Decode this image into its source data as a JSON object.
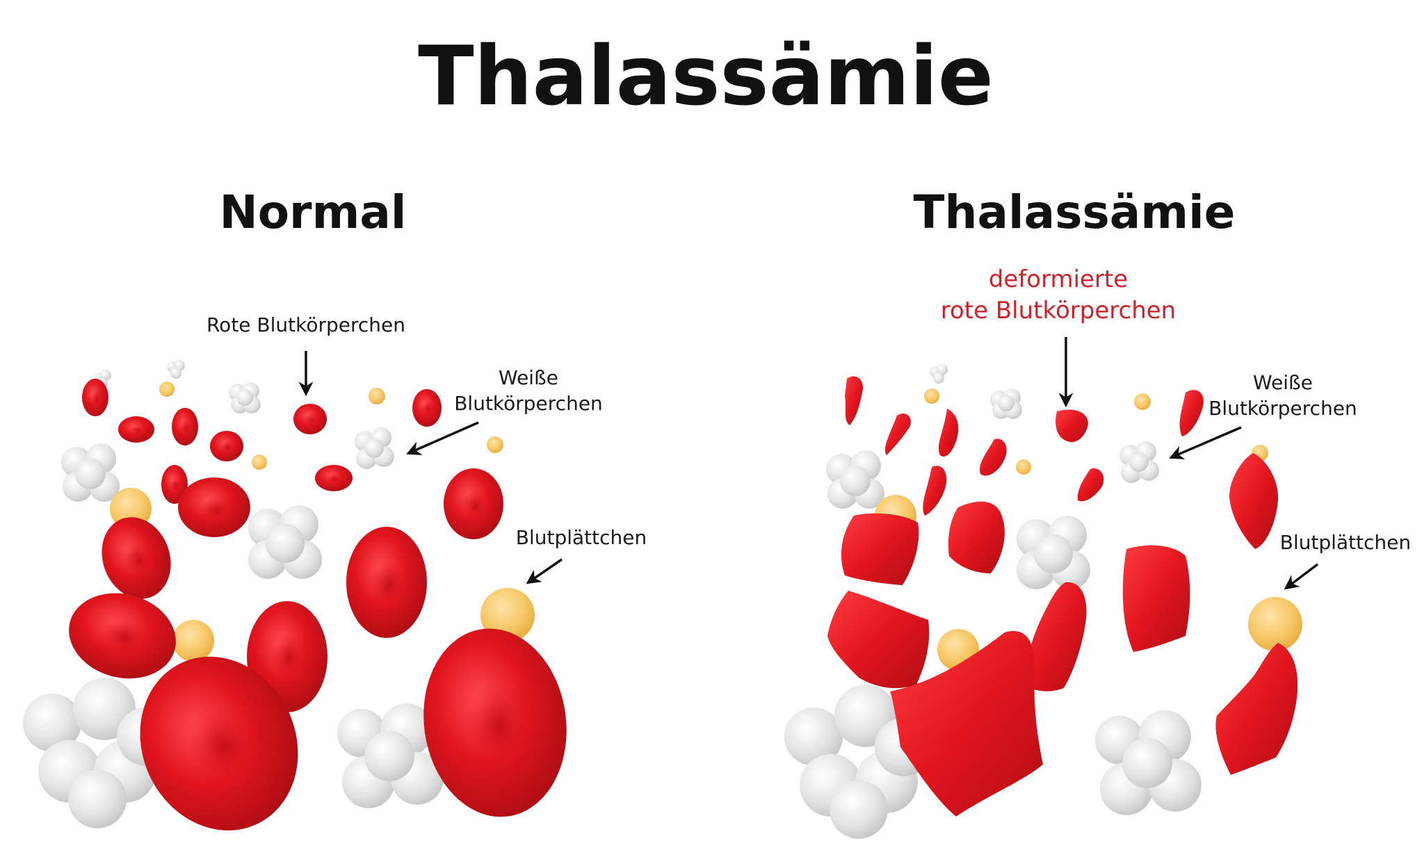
{
  "title": "Thalassämie",
  "panels": {
    "normal": {
      "heading": "Normal",
      "labels": {
        "red_cells": "Rote Blutkörperchen",
        "white_cells_line1": "Weiße",
        "white_cells_line2": "Blutkörperchen",
        "platelets": "Blutplättchen"
      }
    },
    "thalassemia": {
      "heading": "Thalassämie",
      "labels": {
        "red_cells_line1": "deformierte",
        "red_cells_line2": "rote Blutkörperchen",
        "white_cells_line1": "Weiße",
        "white_cells_line2": "Blutkörperchen",
        "platelets": "Blutplättchen"
      }
    }
  },
  "colors": {
    "red_cell": "#e1151e",
    "red_cell_dark": "#a80b12",
    "white_cell": "#e6e6e6",
    "platelet": "#f7c766",
    "deformed_label": "#d0202a"
  }
}
